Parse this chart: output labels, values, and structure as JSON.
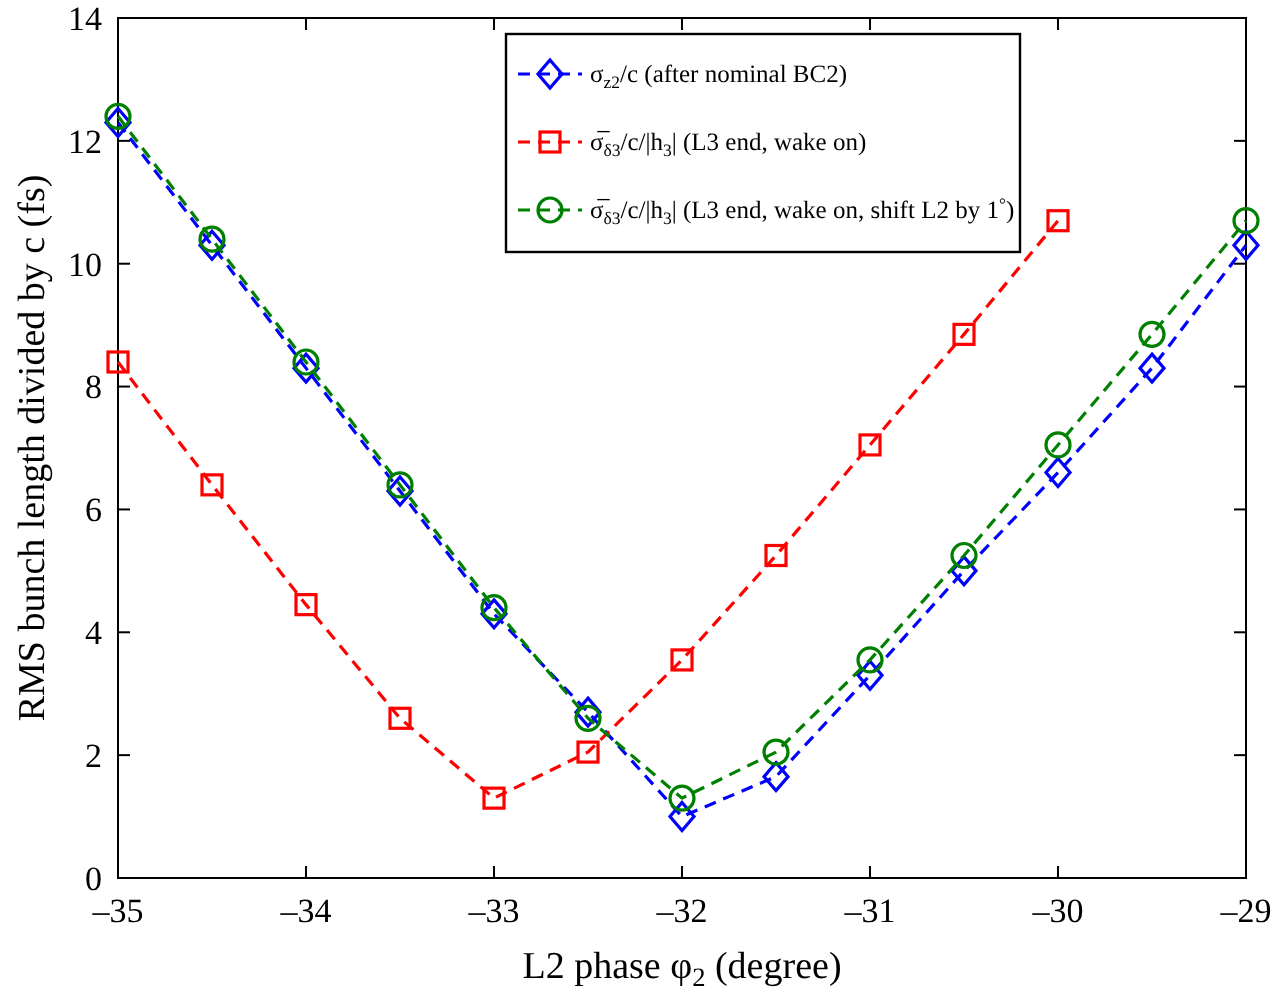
{
  "chart_data": {
    "type": "line",
    "xlabel": "L2 phase φ$_{2}$ (degree)",
    "ylabel": "RMS bunch length divided by c (fs)",
    "xlim": [
      -35,
      -29
    ],
    "xticks": [
      {
        "value": -35,
        "label": "–35"
      },
      {
        "value": -34,
        "label": "–34"
      },
      {
        "value": -33,
        "label": "–33"
      },
      {
        "value": -32,
        "label": "–32"
      },
      {
        "value": -31,
        "label": "–31"
      },
      {
        "value": -30,
        "label": "–30"
      },
      {
        "value": -29,
        "label": "–29"
      }
    ],
    "ylim": [
      0,
      14
    ],
    "yticks": [
      0,
      2,
      4,
      6,
      8,
      10,
      12,
      14
    ],
    "grid": false,
    "legend": "top",
    "line_style": "dashed",
    "series": [
      {
        "name": "σ$_{z2}$/c (after nominal BC2)",
        "color": "#0000ff",
        "marker": "diamond",
        "x": [
          -35,
          -34.5,
          -34,
          -33.5,
          -33,
          -32.5,
          -32,
          -31.5,
          -31,
          -30.5,
          -30,
          -29.5,
          -29
        ],
        "values": [
          12.3,
          10.3,
          8.3,
          6.3,
          4.3,
          2.7,
          1.0,
          1.65,
          3.3,
          5.0,
          6.6,
          8.3,
          10.3
        ]
      },
      {
        "name": "σ̅$_{δ3}$/c/|h$_{3}$| (L3 end, wake on)",
        "color": "#ff0000",
        "marker": "square",
        "x": [
          -35,
          -34.5,
          -34,
          -33.5,
          -33,
          -32.5,
          -32,
          -31.5,
          -31,
          -30.5,
          -30
        ],
        "values": [
          8.4,
          6.4,
          4.45,
          2.6,
          1.3,
          2.05,
          3.55,
          5.25,
          7.05,
          8.85,
          10.7
        ]
      },
      {
        "name": "σ̅$_{δ3}$/c/|h$_{3}$| (L3 end, wake on, shift L2 by 1$^{°}$)",
        "color": "#008000",
        "marker": "circle",
        "x": [
          -35,
          -34.5,
          -34,
          -33.5,
          -33,
          -32.5,
          -32,
          -31.5,
          -31,
          -30.5,
          -30,
          -29.5,
          -29
        ],
        "values": [
          12.4,
          10.4,
          8.4,
          6.4,
          4.4,
          2.6,
          1.3,
          2.05,
          3.55,
          5.25,
          7.05,
          8.85,
          10.7
        ]
      }
    ]
  }
}
